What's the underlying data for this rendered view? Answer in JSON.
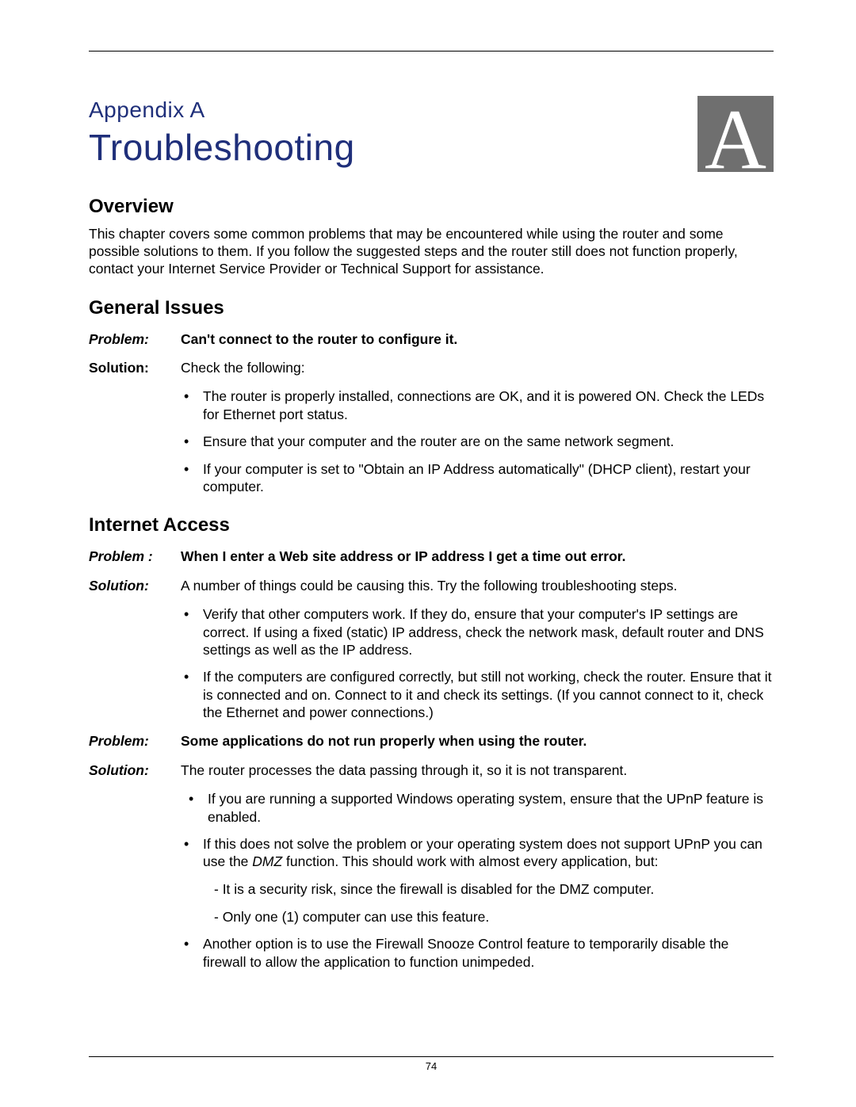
{
  "colors": {
    "brand_blue": "#1f2f7a",
    "badge_bg": "#6f6f6f",
    "badge_fg": "#ffffff",
    "text": "#000000",
    "page_bg": "#ffffff",
    "rule": "#000000"
  },
  "typography": {
    "body_font": "Arial",
    "title_font": "Lucida Sans Unicode",
    "badge_font": "Times New Roman",
    "body_size_pt": 13,
    "section_heading_size_pt": 18,
    "title_size_pt": 34,
    "appendix_label_size_pt": 21
  },
  "header": {
    "appendix_label": "Appendix A",
    "title": "Troubleshooting",
    "badge_letter": "A"
  },
  "overview": {
    "heading": "Overview",
    "paragraph": "This chapter covers some common problems that may be encountered while using the router and some possible solutions to them. If you follow the suggested steps and the router still does not function properly, contact your Internet Service Provider or Technical Support for assistance."
  },
  "general_issues": {
    "heading": "General Issues",
    "problem_label": "Problem:",
    "problem_text": "Can't connect to the router to configure it.",
    "solution_label": "Solution:",
    "solution_intro": "Check the following:",
    "bullets": [
      "The router is properly installed, connections are OK, and it is powered ON. Check the LEDs for Ethernet port status.",
      "Ensure that your computer and the router are on the same network segment.",
      "If your computer is set to \"Obtain an IP Address automatically\" (DHCP client), restart your computer."
    ]
  },
  "internet_access": {
    "heading": "Internet Access",
    "items": [
      {
        "problem_label": "Problem :",
        "problem_label_italic": true,
        "problem_text": "When I enter a Web site address or IP address I get a time out error.",
        "solution_label": "Solution:",
        "solution_label_italic": true,
        "solution_intro": "A number of things could be causing this. Try the following troubleshooting steps.",
        "bullets": [
          "Verify that other computers work. If they do, ensure that your computer's IP settings are correct. If using a fixed (static) IP address, check the network mask, default router and DNS settings as well as the IP address.",
          "If the computers are configured correctly, but still not working, check the router. Ensure that it is connected and on. Connect to it and check its settings. (If you cannot connect to it, check the Ethernet and power connections.)"
        ]
      },
      {
        "problem_label": "Problem:",
        "problem_label_italic": true,
        "problem_text": "Some applications do not run properly when using the router.",
        "solution_label": "Solution:",
        "solution_label_italic": true,
        "solution_intro": "The router processes the data passing through it, so it is not transparent.",
        "bullets_pre": [
          "If you are running a supported Windows operating system, ensure that the UPnP feature is enabled."
        ],
        "bullet_dmz_pre": "If this does not solve the problem or your operating system does not support UPnP you can use the ",
        "bullet_dmz_term": "DMZ",
        "bullet_dmz_post": " function. This should work with almost every application, but:",
        "dashes": [
          "- It is a security risk, since the firewall is disabled for the DMZ computer.",
          "- Only one (1) computer can use this feature."
        ],
        "bullets_post": [
          "Another option is to use the Firewall Snooze Control feature to temporarily disable the firewall to allow the application to function unimpeded."
        ]
      }
    ]
  },
  "footer": {
    "page_number": "74"
  }
}
